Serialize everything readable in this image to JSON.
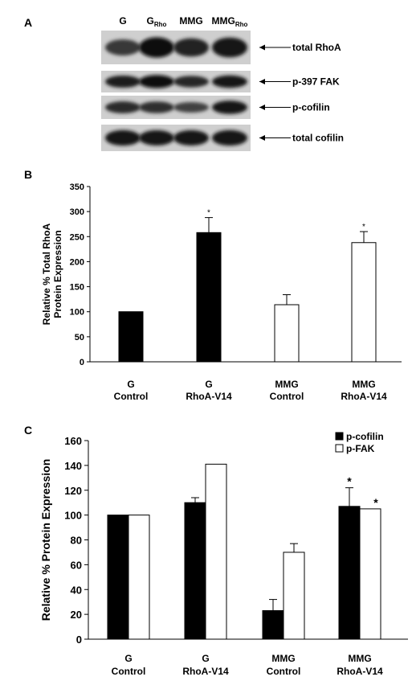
{
  "panel_a": {
    "label": "A",
    "lanes": [
      {
        "main": "G",
        "sub": ""
      },
      {
        "main": "G",
        "sub": "Rho"
      },
      {
        "main": "MMG",
        "sub": ""
      },
      {
        "main": "MMG",
        "sub": "Rho"
      }
    ],
    "blots": [
      {
        "label": "total RhoA",
        "intensity": [
          0.55,
          1.0,
          0.8,
          0.95
        ]
      },
      {
        "label": "p-397 FAK",
        "intensity": [
          0.85,
          1.0,
          0.75,
          0.9
        ]
      },
      {
        "label": "p-cofilin",
        "intensity": [
          0.7,
          0.65,
          0.45,
          0.9
        ]
      },
      {
        "label": "total cofilin",
        "intensity": [
          0.95,
          0.9,
          0.92,
          0.95
        ]
      }
    ]
  },
  "chart_data": [
    {
      "panel": "B",
      "type": "bar",
      "categories": [
        [
          "G",
          "Control"
        ],
        [
          "G",
          "RhoA-V14"
        ],
        [
          "MMG",
          "Control"
        ],
        [
          "MMG",
          "RhoA-V14"
        ]
      ],
      "ylabel": [
        "Relative % Total RhoA",
        "Protein Expression"
      ],
      "ylim": [
        0,
        350
      ],
      "yticks": [
        0,
        50,
        100,
        150,
        200,
        250,
        300,
        350
      ],
      "values": [
        100,
        258,
        114,
        238
      ],
      "errors": [
        0,
        30,
        20,
        22
      ],
      "fills": [
        "#000000",
        "#000000",
        "#ffffff",
        "#ffffff"
      ],
      "significance": [
        "",
        "*",
        "",
        "*"
      ]
    },
    {
      "panel": "C",
      "type": "bar",
      "categories": [
        [
          "G",
          "Control"
        ],
        [
          "G",
          "RhoA-V14"
        ],
        [
          "MMG",
          "Control"
        ],
        [
          "MMG",
          "RhoA-V14"
        ]
      ],
      "ylabel": "Relative % Protein Expression",
      "ylim": [
        0,
        160
      ],
      "yticks": [
        0,
        20,
        40,
        60,
        80,
        100,
        120,
        140,
        160
      ],
      "legend_position": "top-right",
      "series": [
        {
          "name": "p-cofilin",
          "fill": "#000000",
          "values": [
            100,
            110,
            23,
            107
          ],
          "errors": [
            0,
            4,
            9,
            15
          ],
          "significance": [
            "",
            "",
            "",
            "*"
          ]
        },
        {
          "name": "p-FAK",
          "fill": "#ffffff",
          "values": [
            100,
            141,
            70,
            105
          ],
          "errors": [
            0,
            0,
            7,
            0
          ],
          "significance": [
            "",
            "",
            "",
            "*"
          ]
        }
      ]
    }
  ]
}
